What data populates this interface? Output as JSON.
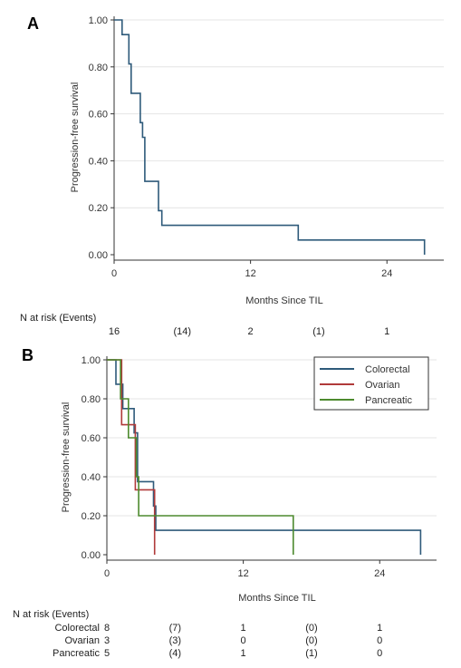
{
  "chart_data": [
    {
      "type": "line",
      "panel_label": "A",
      "xlabel": "Months Since TIL",
      "ylabel": "Progression-free survival",
      "xlim": [
        0,
        29
      ],
      "ylim": [
        0,
        1
      ],
      "x_ticks": [
        "0",
        "12",
        "24"
      ],
      "x_tick_values": [
        0,
        12,
        24
      ],
      "y_ticks": [
        "0.00",
        "0.20",
        "0.40",
        "0.60",
        "0.80",
        "1.00"
      ],
      "y_tick_values": [
        0,
        0.2,
        0.4,
        0.6,
        0.8,
        1.0
      ],
      "grid": true,
      "legend": null,
      "series": [
        {
          "color": "#2e5a7a",
          "step": true,
          "points": [
            [
              0,
              1.0
            ],
            [
              0.7,
              1.0
            ],
            [
              0.7,
              0.9375
            ],
            [
              1.3,
              0.9375
            ],
            [
              1.3,
              0.8125
            ],
            [
              1.5,
              0.8125
            ],
            [
              1.5,
              0.6875
            ],
            [
              2.3,
              0.6875
            ],
            [
              2.3,
              0.5625
            ],
            [
              2.5,
              0.5625
            ],
            [
              2.5,
              0.5
            ],
            [
              2.7,
              0.5
            ],
            [
              2.7,
              0.3125
            ],
            [
              3.9,
              0.3125
            ],
            [
              3.9,
              0.1875
            ],
            [
              4.2,
              0.1875
            ],
            [
              4.2,
              0.125
            ],
            [
              16.2,
              0.125
            ],
            [
              16.2,
              0.0625
            ],
            [
              27.3,
              0.0625
            ],
            [
              27.3,
              0.0
            ]
          ]
        }
      ],
      "risk_table": {
        "title": "N at risk (Events)",
        "columns_x": [
          0,
          6,
          12,
          18,
          24
        ],
        "rows": [
          {
            "label": "",
            "values": [
              "16",
              "(14)",
              "2",
              "(1)",
              "1"
            ]
          }
        ]
      }
    },
    {
      "type": "line",
      "panel_label": "B",
      "xlabel": "Months Since TIL",
      "ylabel": "Progression-free survival",
      "xlim": [
        0,
        29
      ],
      "ylim": [
        0,
        1
      ],
      "x_ticks": [
        "0",
        "12",
        "24"
      ],
      "x_tick_values": [
        0,
        12,
        24
      ],
      "y_ticks": [
        "0.00",
        "0.20",
        "0.40",
        "0.60",
        "0.80",
        "1.00"
      ],
      "y_tick_values": [
        0,
        0.2,
        0.4,
        0.6,
        0.8,
        1.0
      ],
      "grid": true,
      "legend": "top-right",
      "series": [
        {
          "name": "Colorectal",
          "color": "#2e5a7a",
          "step": true,
          "points": [
            [
              0,
              1.0
            ],
            [
              0.8,
              1.0
            ],
            [
              0.8,
              0.875
            ],
            [
              1.4,
              0.875
            ],
            [
              1.4,
              0.75
            ],
            [
              2.4,
              0.75
            ],
            [
              2.4,
              0.625
            ],
            [
              2.7,
              0.625
            ],
            [
              2.7,
              0.375
            ],
            [
              4.1,
              0.375
            ],
            [
              4.1,
              0.25
            ],
            [
              4.3,
              0.25
            ],
            [
              4.3,
              0.125
            ],
            [
              27.6,
              0.125
            ],
            [
              27.6,
              0.0
            ]
          ]
        },
        {
          "name": "Ovarian",
          "color": "#b03a3a",
          "step": true,
          "points": [
            [
              0,
              1.0
            ],
            [
              1.3,
              1.0
            ],
            [
              1.3,
              0.667
            ],
            [
              2.5,
              0.667
            ],
            [
              2.5,
              0.333
            ],
            [
              4.2,
              0.333
            ],
            [
              4.2,
              0.0
            ]
          ]
        },
        {
          "name": "Pancreatic",
          "color": "#4d8a2e",
          "step": true,
          "points": [
            [
              0,
              1.0
            ],
            [
              1.2,
              1.0
            ],
            [
              1.2,
              0.8
            ],
            [
              1.9,
              0.8
            ],
            [
              1.9,
              0.6
            ],
            [
              2.6,
              0.6
            ],
            [
              2.6,
              0.4
            ],
            [
              2.8,
              0.4
            ],
            [
              2.8,
              0.2
            ],
            [
              16.4,
              0.2
            ],
            [
              16.4,
              0.0
            ]
          ]
        }
      ],
      "risk_table": {
        "title": "N at risk (Events)",
        "columns_x": [
          0,
          6,
          12,
          18,
          24
        ],
        "rows": [
          {
            "label": "Colorectal",
            "values": [
              "8",
              "(7)",
              "1",
              "(0)",
              "1"
            ]
          },
          {
            "label": "Ovarian",
            "values": [
              "3",
              "(3)",
              "0",
              "(0)",
              "0"
            ]
          },
          {
            "label": "Pancreatic",
            "values": [
              "5",
              "(4)",
              "1",
              "(1)",
              "0"
            ]
          }
        ]
      }
    }
  ]
}
